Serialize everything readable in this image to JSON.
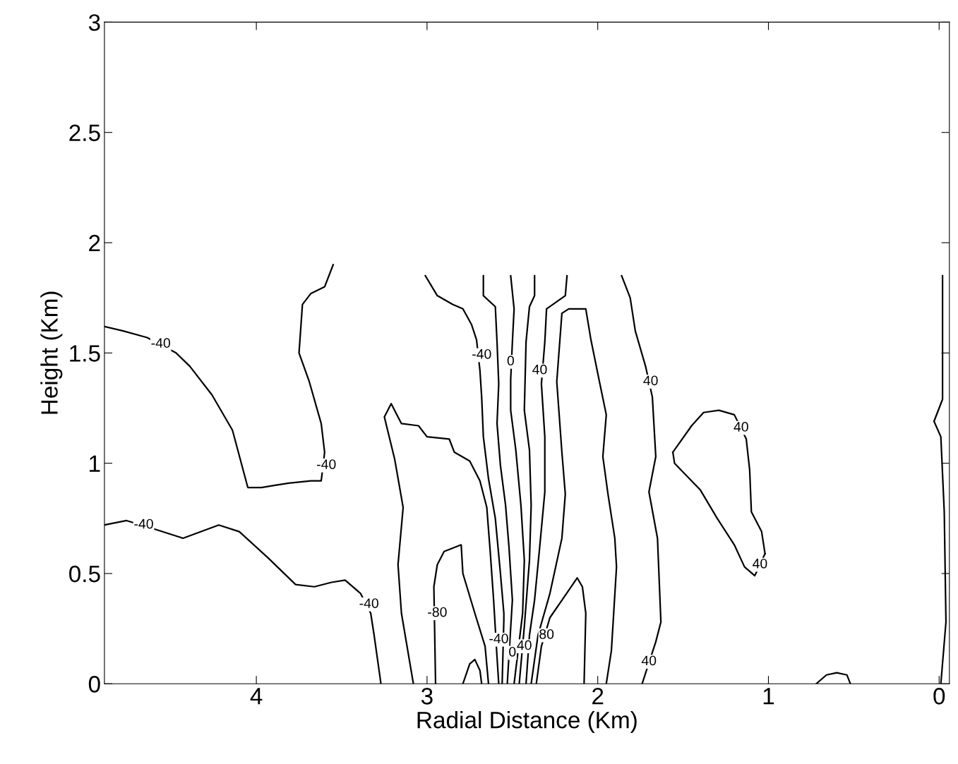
{
  "chart_data": {
    "type": "line",
    "xlabel": "Radial Distance (Km)",
    "ylabel": "Height (Km)",
    "xlim": [
      4.89,
      -0.06
    ],
    "xticks": [
      4,
      3,
      2,
      1,
      0
    ],
    "ylim": [
      0,
      3
    ],
    "yticks": [
      0,
      0.5,
      1,
      1.5,
      2,
      2.5,
      3
    ],
    "grid": false,
    "legend": false,
    "series": [
      {
        "color": "#000000",
        "x": [
          4.89,
          4.78,
          4.64,
          4.47,
          4.39,
          4.26,
          4.14,
          4.05,
          3.97,
          3.89,
          3.81,
          3.68,
          3.62,
          3.6,
          3.62,
          3.69,
          3.75,
          3.73,
          3.68,
          3.6,
          3.55
        ],
        "values": [
          1.62,
          1.6,
          1.57,
          1.5,
          1.44,
          1.31,
          1.15,
          0.89,
          0.89,
          0.9,
          0.91,
          0.92,
          0.92,
          1.05,
          1.18,
          1.37,
          1.5,
          1.72,
          1.77,
          1.8,
          1.9
        ]
      },
      {
        "color": "#000000",
        "x": [
          4.89,
          4.76,
          4.59,
          4.43,
          4.22,
          4.1,
          3.93,
          3.77,
          3.66,
          3.56,
          3.48,
          3.39,
          3.33,
          3.31,
          3.27
        ],
        "values": [
          0.72,
          0.74,
          0.7,
          0.66,
          0.72,
          0.69,
          0.57,
          0.45,
          0.44,
          0.46,
          0.47,
          0.41,
          0.32,
          0.22,
          0
        ]
      },
      {
        "color": "#000000",
        "x": [
          3.08,
          3.15,
          3.17,
          3.14,
          3.19,
          3.25,
          3.21,
          3.15,
          3.05,
          3.0,
          2.87,
          2.84,
          2.75,
          2.69,
          2.65,
          2.63,
          2.61,
          2.59,
          2.58
        ],
        "values": [
          0,
          0.32,
          0.54,
          0.8,
          1.02,
          1.21,
          1.27,
          1.18,
          1.17,
          1.12,
          1.11,
          1.05,
          1.01,
          0.92,
          0.8,
          0.6,
          0.38,
          0.12,
          0
        ]
      },
      {
        "color": "#000000",
        "x": [
          2.95,
          2.96,
          2.94,
          2.9,
          2.8,
          2.79,
          2.72,
          2.66,
          2.64
        ],
        "values": [
          0,
          0.44,
          0.54,
          0.6,
          0.63,
          0.5,
          0.32,
          0.17,
          0
        ]
      },
      {
        "color": "#000000",
        "x": [
          2.79,
          2.75,
          2.72,
          2.69,
          2.68
        ],
        "values": [
          0,
          0.09,
          0.11,
          0.06,
          0
        ]
      },
      {
        "color": "#000000",
        "x": [
          3.01,
          2.94,
          2.85,
          2.79,
          2.74,
          2.71,
          2.69,
          2.68,
          2.67,
          2.64,
          2.6,
          2.57,
          2.55,
          2.55,
          2.56
        ],
        "values": [
          1.85,
          1.76,
          1.72,
          1.7,
          1.63,
          1.56,
          1.42,
          1.3,
          1.12,
          0.93,
          0.75,
          0.5,
          0.32,
          0.29,
          0
        ]
      },
      {
        "color": "#000000",
        "x": [
          2.67,
          2.67,
          2.6,
          2.59,
          2.58,
          2.59,
          2.57,
          2.54,
          2.52,
          2.5,
          2.53
        ],
        "values": [
          1.85,
          1.76,
          1.71,
          1.55,
          1.36,
          1.18,
          0.99,
          0.81,
          0.62,
          0.38,
          0
        ]
      },
      {
        "color": "#000000",
        "x": [
          2.51,
          2.49,
          2.5,
          2.51,
          2.51,
          2.48,
          2.45,
          2.43,
          2.44,
          2.49
        ],
        "values": [
          1.85,
          1.7,
          1.55,
          1.38,
          1.24,
          1.06,
          0.81,
          0.56,
          0.32,
          0
        ]
      },
      {
        "color": "#000000",
        "x": [
          2.37,
          2.37,
          2.4,
          2.42,
          2.43,
          2.4,
          2.39,
          2.4,
          2.43,
          2.46
        ],
        "values": [
          1.85,
          1.76,
          1.71,
          1.55,
          1.24,
          1.06,
          0.81,
          0.56,
          0.26,
          0
        ]
      },
      {
        "color": "#000000",
        "x": [
          2.18,
          2.19,
          2.3,
          2.31,
          2.33,
          2.31,
          2.31,
          2.34,
          2.37,
          2.4,
          2.42
        ],
        "values": [
          1.85,
          1.76,
          1.7,
          1.55,
          1.36,
          1.12,
          0.87,
          0.62,
          0.38,
          0.22,
          0
        ]
      },
      {
        "color": "#000000",
        "x": [
          2.39,
          2.35,
          2.28,
          2.21,
          2.19,
          2.21,
          2.24,
          2.21,
          2.17,
          2.07,
          2.04,
          1.99,
          1.95,
          1.97,
          1.94,
          1.9,
          1.89,
          1.92,
          1.95
        ],
        "values": [
          0,
          0.22,
          0.41,
          0.66,
          0.86,
          1.05,
          1.37,
          1.68,
          1.7,
          1.7,
          1.56,
          1.37,
          1.22,
          1.03,
          0.86,
          0.66,
          0.53,
          0.15,
          0
        ]
      },
      {
        "color": "#000000",
        "x": [
          2.36,
          2.33,
          2.28,
          2.2,
          2.12,
          2.09,
          2.07,
          2.08
        ],
        "values": [
          0,
          0.17,
          0.3,
          0.39,
          0.48,
          0.44,
          0.32,
          0
        ]
      },
      {
        "color": "#000000",
        "x": [
          1.86,
          1.81,
          1.78,
          1.72,
          1.68,
          1.66,
          1.7,
          1.65,
          1.63,
          1.66,
          1.74
        ],
        "values": [
          1.85,
          1.75,
          1.6,
          1.44,
          1.3,
          1.03,
          0.87,
          0.66,
          0.28,
          0.19,
          0
        ]
      },
      {
        "color": "#000000",
        "x": [
          1.56,
          1.45,
          1.38,
          1.29,
          1.2,
          1.13,
          1.11,
          1.1,
          1.04,
          1.02
        ],
        "values": [
          1.05,
          1.17,
          1.23,
          1.24,
          1.22,
          1.11,
          0.97,
          0.78,
          0.69,
          0.59
        ]
      },
      {
        "color": "#000000",
        "x": [
          1.02,
          1.08,
          1.14,
          1.2,
          1.3,
          1.4,
          1.55,
          1.56
        ],
        "values": [
          0.59,
          0.49,
          0.53,
          0.63,
          0.75,
          0.88,
          1.0,
          1.05
        ]
      },
      {
        "color": "#000000",
        "x": [
          0.72,
          0.66,
          0.6,
          0.54,
          0.52
        ],
        "values": [
          0,
          0.04,
          0.05,
          0.04,
          0
        ]
      },
      {
        "color": "#000000",
        "x": [
          -0.02,
          -0.02,
          0.03,
          -0.01,
          -0.03,
          -0.04,
          -0.01
        ],
        "values": [
          1.85,
          1.29,
          1.19,
          1.12,
          0.78,
          0.28,
          0
        ]
      }
    ],
    "annotations": [
      {
        "text": "-40",
        "x": 4.56,
        "y": 1.54
      },
      {
        "text": "-40",
        "x": 3.59,
        "y": 0.99
      },
      {
        "text": "-40",
        "x": 4.66,
        "y": 0.72
      },
      {
        "text": "-40",
        "x": 3.34,
        "y": 0.36
      },
      {
        "text": "-80",
        "x": 2.94,
        "y": 0.32
      },
      {
        "text": "-40",
        "x": 2.68,
        "y": 1.49
      },
      {
        "text": "0",
        "x": 2.51,
        "y": 1.46
      },
      {
        "text": "40",
        "x": 2.34,
        "y": 1.42
      },
      {
        "text": "-40",
        "x": 2.58,
        "y": 0.2
      },
      {
        "text": "0",
        "x": 2.5,
        "y": 0.14
      },
      {
        "text": "40",
        "x": 2.43,
        "y": 0.17
      },
      {
        "text": "80",
        "x": 2.3,
        "y": 0.22
      },
      {
        "text": "40",
        "x": 1.69,
        "y": 1.37
      },
      {
        "text": "40",
        "x": 1.7,
        "y": 0.1
      },
      {
        "text": "40",
        "x": 1.16,
        "y": 1.16
      },
      {
        "text": "40",
        "x": 1.05,
        "y": 0.54
      }
    ]
  }
}
